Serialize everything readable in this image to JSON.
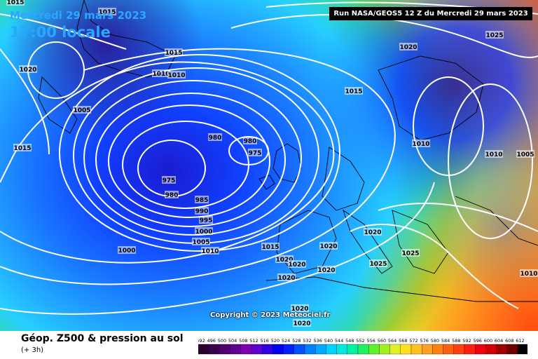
{
  "header": {
    "date": "Mercredi 29 mars 2023",
    "local_time": "17:00 locale",
    "run_info": "Run NASA/GEOS5 12 Z du Mercredi 29 mars 2023"
  },
  "map": {
    "region": "North Atlantic and Europe",
    "field_colors": [
      "#4b0082",
      "#1d1dd6",
      "#1060ff",
      "#2aa8ff",
      "#29d1ff",
      "#24e0c0",
      "#35d040",
      "#a0e020",
      "#ffff40",
      "#ffd028",
      "#ffa020",
      "#ff7010",
      "#ff3a10",
      "#ff1010"
    ],
    "isobar_color": "#ffffff",
    "coastline_color": "#000000",
    "pressure_labels": [
      {
        "value": "1015",
        "name": "label-1015-top-left"
      },
      {
        "value": "1015",
        "name": "label-1015-top-center"
      },
      {
        "value": "1020",
        "name": "label-1020-west"
      },
      {
        "value": "1015",
        "name": "label-1015-iceland"
      },
      {
        "value": "1010",
        "name": "label-1010-iceland-a"
      },
      {
        "value": "1010",
        "name": "label-1010-iceland-b"
      },
      {
        "value": "1005",
        "name": "label-1005-greenland"
      },
      {
        "value": "1015",
        "name": "label-1015-far-west"
      },
      {
        "value": "980",
        "name": "label-980-low-a"
      },
      {
        "value": "980",
        "name": "label-980-low-b"
      },
      {
        "value": "975",
        "name": "label-975-low-a"
      },
      {
        "value": "975",
        "name": "label-975-low-b"
      },
      {
        "value": "980",
        "name": "label-980-low-c"
      },
      {
        "value": "985",
        "name": "label-985"
      },
      {
        "value": "990",
        "name": "label-990"
      },
      {
        "value": "995",
        "name": "label-995"
      },
      {
        "value": "1000",
        "name": "label-1000-a"
      },
      {
        "value": "1005",
        "name": "label-1005-a"
      },
      {
        "value": "1010",
        "name": "label-1010-a"
      },
      {
        "value": "1000",
        "name": "label-1000-b"
      },
      {
        "value": "1020",
        "name": "label-1020-north"
      },
      {
        "value": "1015",
        "name": "label-1015-north"
      },
      {
        "value": "1025",
        "name": "label-1025-ne"
      },
      {
        "value": "1010",
        "name": "label-1010-scand"
      },
      {
        "value": "1010",
        "name": "label-1010-east"
      },
      {
        "value": "1005",
        "name": "label-1005-east"
      },
      {
        "value": "1020",
        "name": "label-1020-alps"
      },
      {
        "value": "1015",
        "name": "label-1015-iberia"
      },
      {
        "value": "1020",
        "name": "label-1020-iberia"
      },
      {
        "value": "1020",
        "name": "label-1020-france"
      },
      {
        "value": "1020",
        "name": "label-1020-spain"
      },
      {
        "value": "1020",
        "name": "label-1020-med"
      },
      {
        "value": "1020",
        "name": "label-1020-sw"
      },
      {
        "value": "1025",
        "name": "label-1025-italy"
      },
      {
        "value": "1025",
        "name": "label-1025-balkans"
      },
      {
        "value": "1010",
        "name": "label-1010-se"
      },
      {
        "value": "1020",
        "name": "label-1020-africa-a"
      },
      {
        "value": "1020",
        "name": "label-1020-africa-b"
      }
    ],
    "copyright": "Copyright © 2023 Meteociel.fr"
  },
  "legend": {
    "title": "Géop. Z500 & pression au sol",
    "subtitle": "(+ 3h)",
    "ticks": [
      "492",
      "496",
      "500",
      "504",
      "508",
      "512",
      "516",
      "520",
      "524",
      "528",
      "532",
      "536",
      "540",
      "544",
      "548",
      "552",
      "556",
      "560",
      "564",
      "568",
      "572",
      "576",
      "580",
      "584",
      "588",
      "592",
      "596",
      "600",
      "604",
      "608",
      "612"
    ],
    "colors": [
      "#2a0030",
      "#3c0050",
      "#500070",
      "#640090",
      "#7a00b0",
      "#6000d0",
      "#3000e0",
      "#0000f0",
      "#0020ff",
      "#0050ff",
      "#0080ff",
      "#00a8ff",
      "#00d0ff",
      "#00e8e0",
      "#00f0a0",
      "#20f060",
      "#60f030",
      "#a0f020",
      "#e0f020",
      "#ffe020",
      "#ffc020",
      "#ffa020",
      "#ff8010",
      "#ff6010",
      "#ff4010",
      "#ff2010",
      "#f00010",
      "#d00000",
      "#a00000",
      "#700000",
      "#000000"
    ]
  }
}
